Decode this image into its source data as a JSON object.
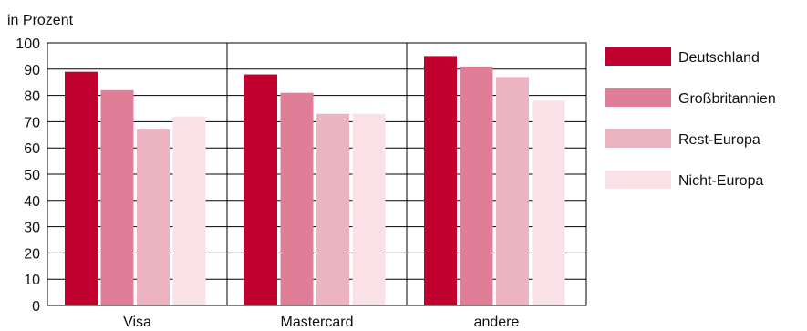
{
  "chart_data": {
    "type": "bar",
    "title": "",
    "ylabel": "in Prozent",
    "xlabel": "",
    "ylim": [
      0,
      100
    ],
    "yticks": [
      0,
      10,
      20,
      30,
      40,
      50,
      60,
      70,
      80,
      90,
      100
    ],
    "grid": true,
    "legend_position": "right",
    "categories": [
      "Visa",
      "Mastercard",
      "andere"
    ],
    "series": [
      {
        "name": "Deutschland",
        "color": "#c0002f",
        "values": [
          89,
          88,
          95
        ]
      },
      {
        "name": "Großbritannien",
        "color": "#e07e98",
        "values": [
          82,
          81,
          91
        ]
      },
      {
        "name": "Rest-Europa",
        "color": "#ecb3c1",
        "values": [
          67,
          73,
          87
        ]
      },
      {
        "name": "Nicht-Europa",
        "color": "#f9e1e7",
        "values": [
          72,
          73,
          78
        ]
      }
    ]
  }
}
